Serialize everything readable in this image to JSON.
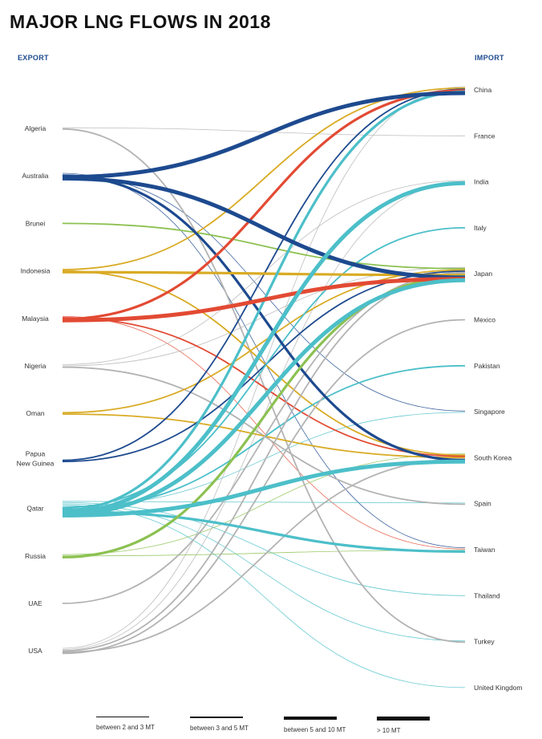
{
  "title": "MAJOR LNG FLOWS IN 2018",
  "export_header": "EXPORT",
  "import_header": "IMPORT",
  "exporters": [
    "Algeria",
    "Australia",
    "Brunei",
    "Indonesia",
    "Malaysia",
    "Nigeria",
    "Oman",
    "Papua New Guinea",
    "Qatar",
    "Russia",
    "UAE",
    "USA"
  ],
  "importers": [
    "China",
    "France",
    "India",
    "Italy",
    "Japan",
    "Mexico",
    "Pakistan",
    "Singapore",
    "South Korea",
    "Spain",
    "Taiwan",
    "Thailand",
    "Turkey",
    "United Kingdom"
  ],
  "colors": {
    "Algeria": "#b3b3b3",
    "Australia": "#1d4a8f",
    "Brunei": "#8cc152",
    "Indonesia": "#d9ab25",
    "Malaysia": "#e24a33",
    "Nigeria": "#b3b3b3",
    "Oman": "#d9ab25",
    "Papua New Guinea": "#1d4a8f",
    "Qatar": "#4cbfc9",
    "Russia": "#8cc152",
    "UAE": "#b3b3b3",
    "USA": "#b3b3b3"
  },
  "volume_classes": [
    {
      "key": "2-3",
      "label": "between 2 and 3 MT"
    },
    {
      "key": "3-5",
      "label": "between 3 and 5 MT"
    },
    {
      "key": "5-10",
      "label": "between 5 and 10 MT"
    },
    {
      "key": ">10",
      "label": "> 10 MT"
    }
  ],
  "flows": [
    {
      "from": "Algeria",
      "to": "France",
      "volume": "2-3"
    },
    {
      "from": "Algeria",
      "to": "Turkey",
      "volume": "3-5"
    },
    {
      "from": "Australia",
      "to": "China",
      "volume": ">10"
    },
    {
      "from": "Australia",
      "to": "Japan",
      "volume": ">10"
    },
    {
      "from": "Australia",
      "to": "South Korea",
      "volume": "5-10"
    },
    {
      "from": "Australia",
      "to": "Taiwan",
      "volume": "2-3"
    },
    {
      "from": "Australia",
      "to": "Singapore",
      "volume": "2-3"
    },
    {
      "from": "Brunei",
      "to": "Japan",
      "volume": "3-5"
    },
    {
      "from": "Indonesia",
      "to": "China",
      "volume": "3-5"
    },
    {
      "from": "Indonesia",
      "to": "Japan",
      "volume": "5-10"
    },
    {
      "from": "Indonesia",
      "to": "South Korea",
      "volume": "3-5"
    },
    {
      "from": "Malaysia",
      "to": "China",
      "volume": "5-10"
    },
    {
      "from": "Malaysia",
      "to": "Japan",
      "volume": ">10"
    },
    {
      "from": "Malaysia",
      "to": "South Korea",
      "volume": "3-5"
    },
    {
      "from": "Malaysia",
      "to": "Taiwan",
      "volume": "2-3"
    },
    {
      "from": "Nigeria",
      "to": "India",
      "volume": "2-3"
    },
    {
      "from": "Nigeria",
      "to": "Spain",
      "volume": "3-5"
    },
    {
      "from": "Nigeria",
      "to": "Japan",
      "volume": "2-3"
    },
    {
      "from": "Oman",
      "to": "Japan",
      "volume": "3-5"
    },
    {
      "from": "Oman",
      "to": "South Korea",
      "volume": "3-5"
    },
    {
      "from": "Papua New Guinea",
      "to": "China",
      "volume": "3-5"
    },
    {
      "from": "Papua New Guinea",
      "to": "Japan",
      "volume": "3-5"
    },
    {
      "from": "Qatar",
      "to": "China",
      "volume": "5-10"
    },
    {
      "from": "Qatar",
      "to": "India",
      "volume": ">10"
    },
    {
      "from": "Qatar",
      "to": "Italy",
      "volume": "3-5"
    },
    {
      "from": "Qatar",
      "to": "Japan",
      "volume": ">10"
    },
    {
      "from": "Qatar",
      "to": "Pakistan",
      "volume": "3-5"
    },
    {
      "from": "Qatar",
      "to": "South Korea",
      "volume": ">10"
    },
    {
      "from": "Qatar",
      "to": "Spain",
      "volume": "2-3"
    },
    {
      "from": "Qatar",
      "to": "Taiwan",
      "volume": "5-10"
    },
    {
      "from": "Qatar",
      "to": "Thailand",
      "volume": "2-3"
    },
    {
      "from": "Qatar",
      "to": "Turkey",
      "volume": "2-3"
    },
    {
      "from": "Qatar",
      "to": "United Kingdom",
      "volume": "2-3"
    },
    {
      "from": "Qatar",
      "to": "Singapore",
      "volume": "2-3"
    },
    {
      "from": "Russia",
      "to": "Japan",
      "volume": "5-10"
    },
    {
      "from": "Russia",
      "to": "South Korea",
      "volume": "2-3"
    },
    {
      "from": "Russia",
      "to": "Taiwan",
      "volume": "2-3"
    },
    {
      "from": "UAE",
      "to": "Japan",
      "volume": "3-5"
    },
    {
      "from": "USA",
      "to": "China",
      "volume": "2-3"
    },
    {
      "from": "USA",
      "to": "India",
      "volume": "2-3"
    },
    {
      "from": "USA",
      "to": "Japan",
      "volume": "3-5"
    },
    {
      "from": "USA",
      "to": "South Korea",
      "volume": "3-5"
    },
    {
      "from": "USA",
      "to": "Mexico",
      "volume": "3-5"
    }
  ]
}
